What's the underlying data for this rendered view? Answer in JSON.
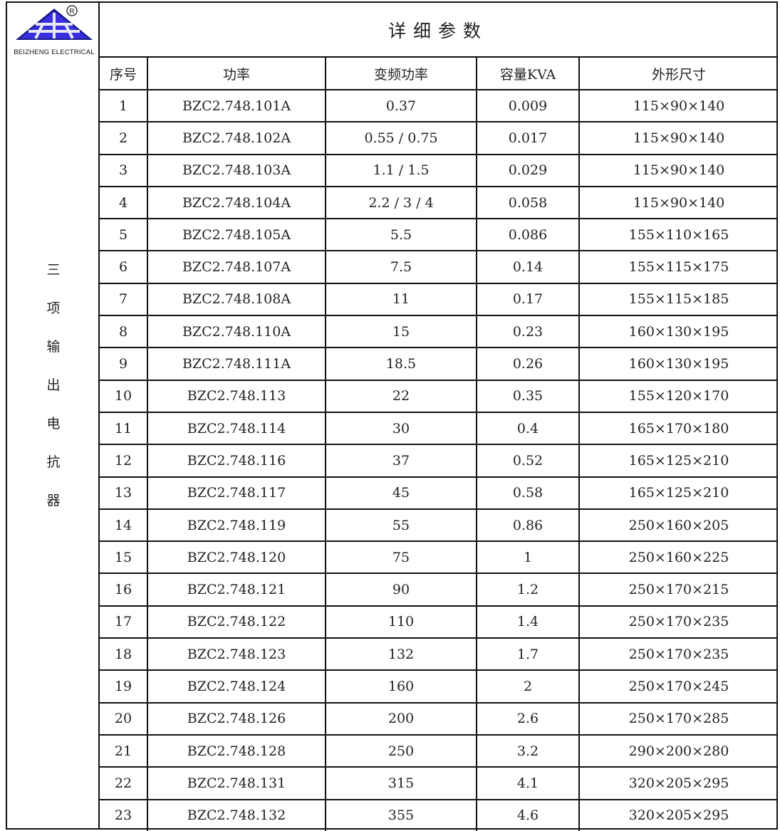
{
  "logo": {
    "brand": "BEIZHENG ELECTRICAL",
    "registered": "®",
    "colors": {
      "fill": "#3a2fe0",
      "outline": "#1a1a8a"
    }
  },
  "title": "详细参数",
  "side_label": [
    "三",
    "项",
    "输",
    "出",
    "电",
    "抗",
    "器"
  ],
  "headers": [
    "序号",
    "功率",
    "变频功率",
    "容量KVA",
    "外形尺寸"
  ],
  "rows": [
    [
      "1",
      "BZC2.748.101A",
      "0.37",
      "0.009",
      "115×90×140"
    ],
    [
      "2",
      "BZC2.748.102A",
      "0.55 / 0.75",
      "0.017",
      "115×90×140"
    ],
    [
      "3",
      "BZC2.748.103A",
      "1.1 / 1.5",
      "0.029",
      "115×90×140"
    ],
    [
      "4",
      "BZC2.748.104A",
      "2.2 / 3 / 4",
      "0.058",
      "115×90×140"
    ],
    [
      "5",
      "BZC2.748.105A",
      "5.5",
      "0.086",
      "155×110×165"
    ],
    [
      "6",
      "BZC2.748.107A",
      "7.5",
      "0.14",
      "155×115×175"
    ],
    [
      "7",
      "BZC2.748.108A",
      "11",
      "0.17",
      "155×115×185"
    ],
    [
      "8",
      "BZC2.748.110A",
      "15",
      "0.23",
      "160×130×195"
    ],
    [
      "9",
      "BZC2.748.111A",
      "18.5",
      "0.26",
      "160×130×195"
    ],
    [
      "10",
      "BZC2.748.113",
      "22",
      "0.35",
      "155×120×170"
    ],
    [
      "11",
      "BZC2.748.114",
      "30",
      "0.4",
      "165×170×180"
    ],
    [
      "12",
      "BZC2.748.116",
      "37",
      "0.52",
      "165×125×210"
    ],
    [
      "13",
      "BZC2.748.117",
      "45",
      "0.58",
      "165×125×210"
    ],
    [
      "14",
      "BZC2.748.119",
      "55",
      "0.86",
      "250×160×205"
    ],
    [
      "15",
      "BZC2.748.120",
      "75",
      "1",
      "250×160×225"
    ],
    [
      "16",
      "BZC2.748.121",
      "90",
      "1.2",
      "250×170×215"
    ],
    [
      "17",
      "BZC2.748.122",
      "110",
      "1.4",
      "250×170×235"
    ],
    [
      "18",
      "BZC2.748.123",
      "132",
      "1.7",
      "250×170×235"
    ],
    [
      "19",
      "BZC2.748.124",
      "160",
      "2",
      "250×170×245"
    ],
    [
      "20",
      "BZC2.748.126",
      "200",
      "2.6",
      "250×170×285"
    ],
    [
      "21",
      "BZC2.748.128",
      "250",
      "3.2",
      "290×200×280"
    ],
    [
      "22",
      "BZC2.748.131",
      "315",
      "4.1",
      "320×205×295"
    ],
    [
      "23",
      "BZC2.748.132",
      "355",
      "4.6",
      "320×205×295"
    ]
  ]
}
